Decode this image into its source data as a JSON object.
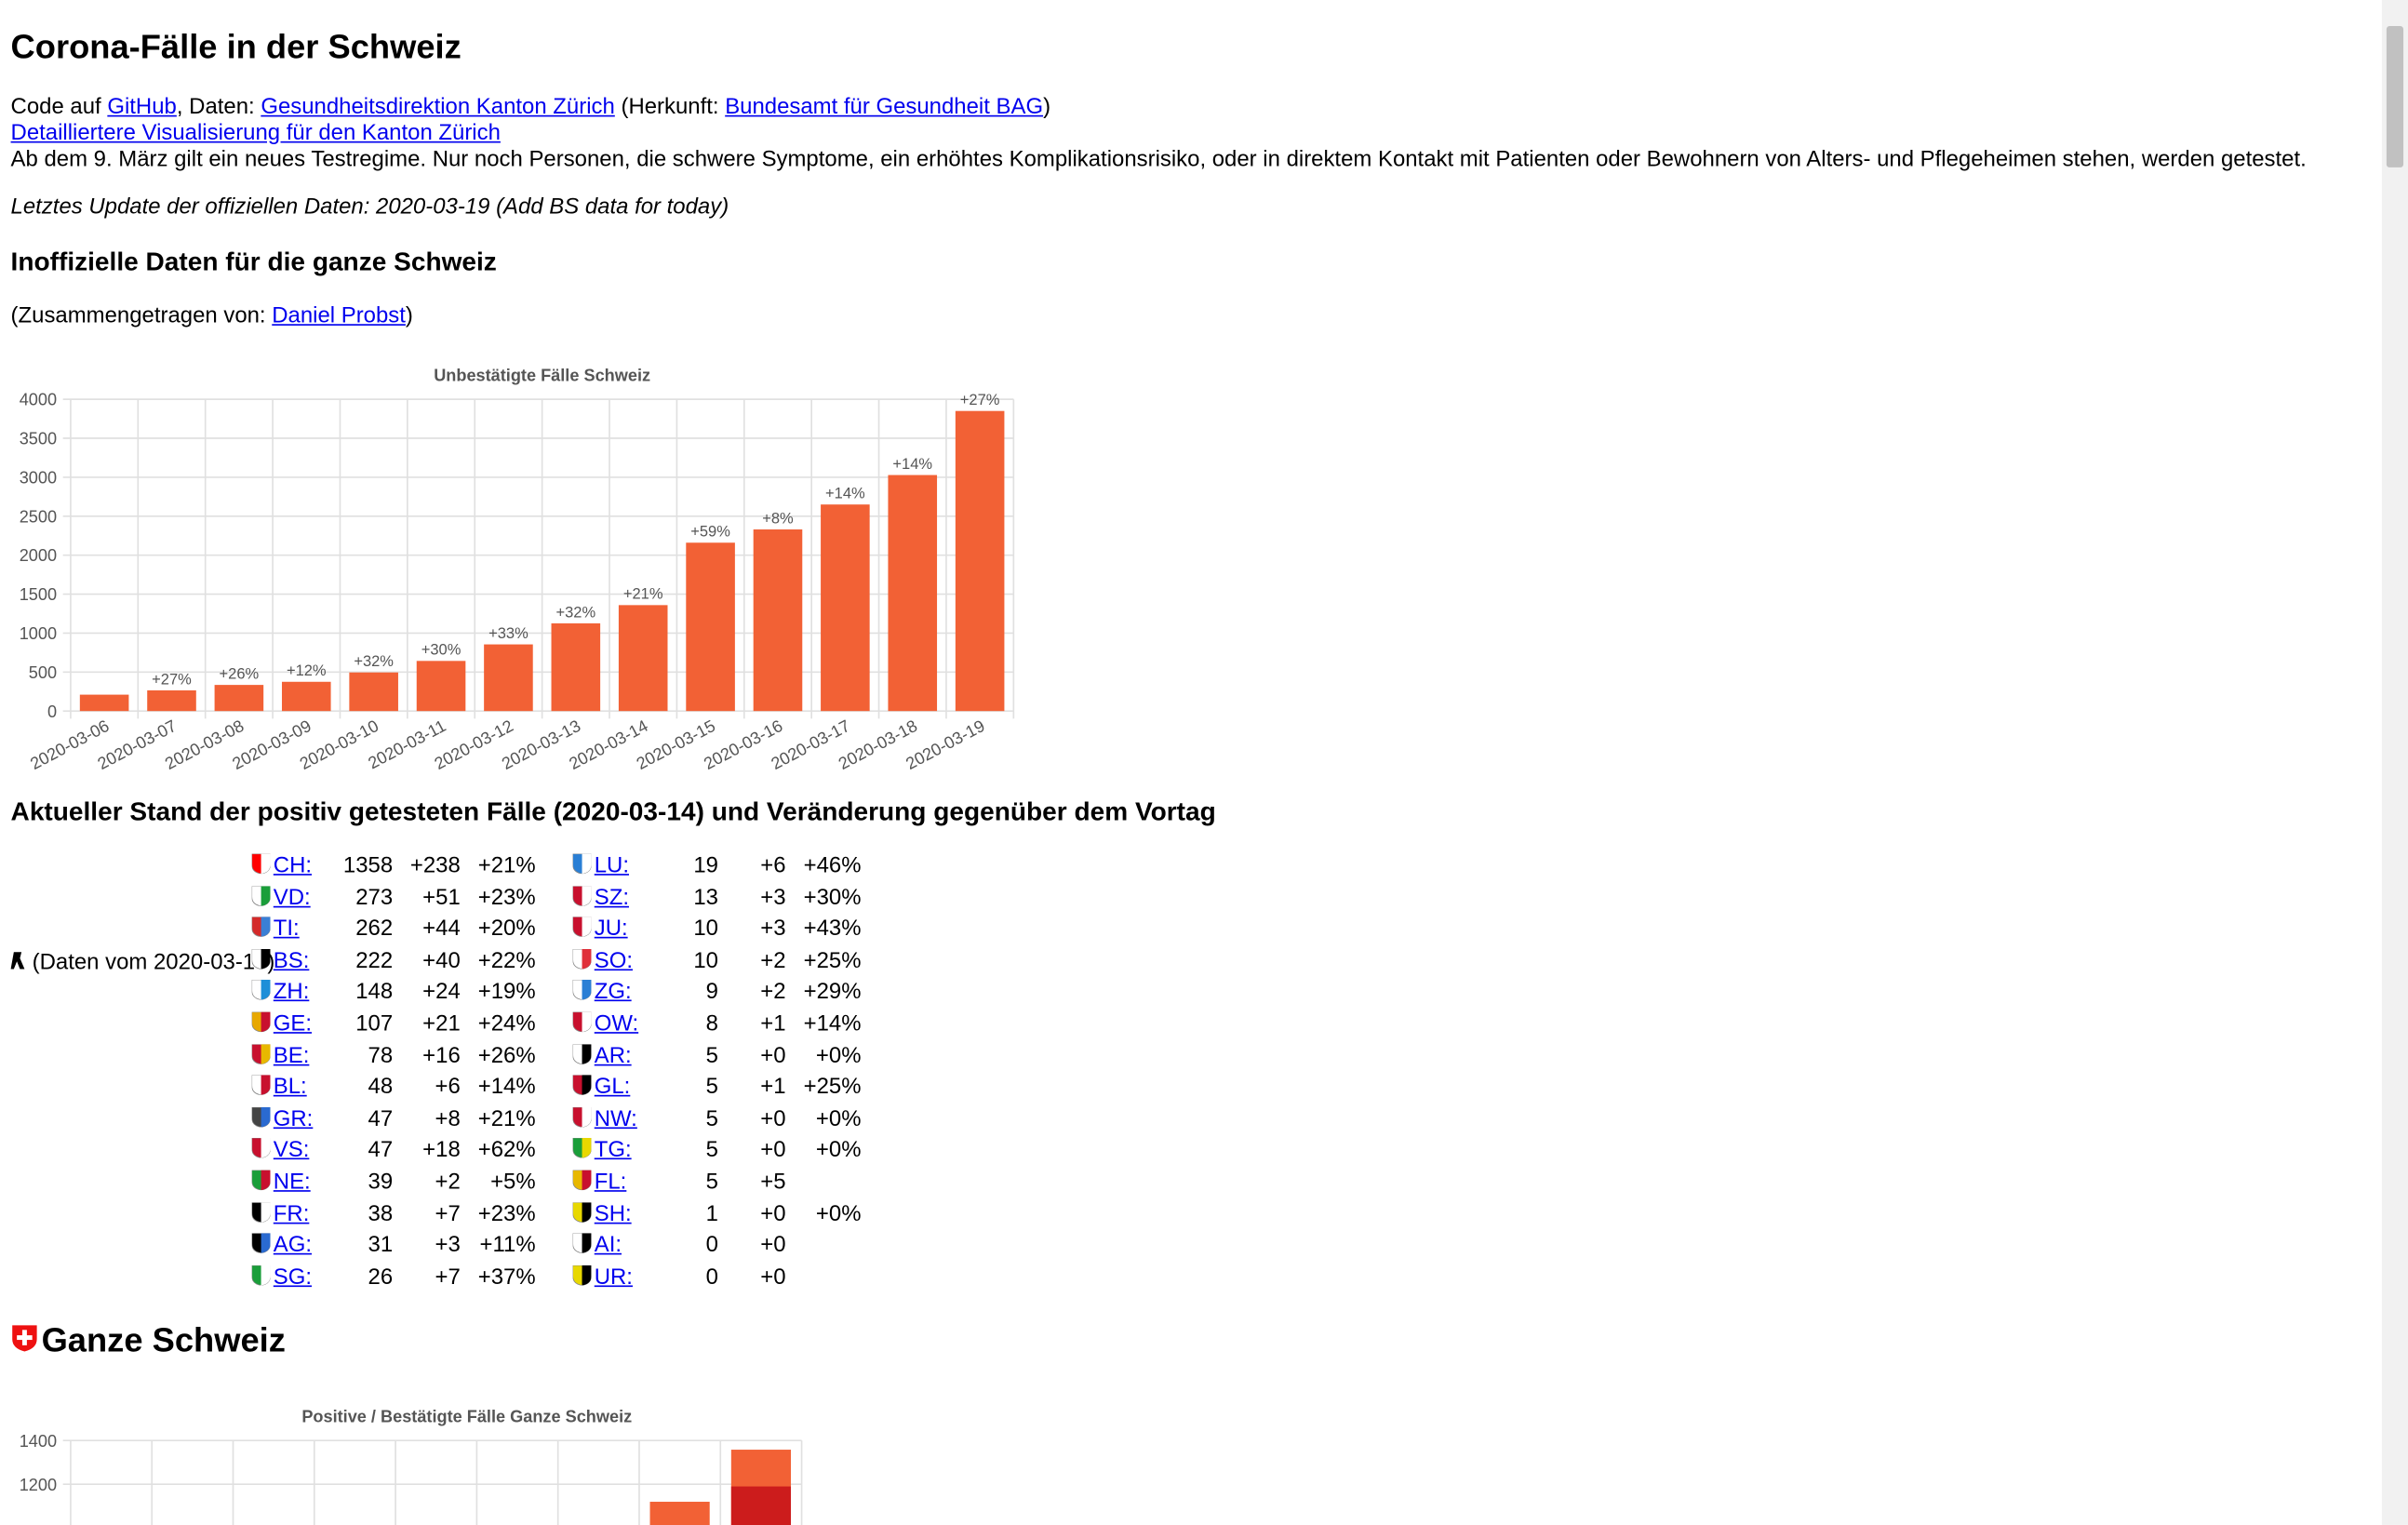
{
  "title": "Corona-Fälle in der Schweiz",
  "source": {
    "code_prefix": "Code auf ",
    "github": "GitHub",
    "daten": ", Daten: ",
    "gd": "Gesundheitsdirektion Kanton Zürich",
    "herkunft": " (Herkunft: ",
    "bag": "Bundesamt für Gesundheit BAG",
    "close": ")"
  },
  "detail_link": "Detailliertere Visualisierung für den Kanton Zürich",
  "testregime": "Ab dem 9. März gilt ein neues Testregime. Nur noch Personen, die schwere Symptome, ein erhöhtes Komplikationsrisiko, oder in direktem Kontakt mit Patienten oder Bewohnern von Alters- und Pflegeheimen stehen, werden getestet.",
  "update": "Letztes Update der offiziellen Daten: 2020-03-19 (Add BS data for today)",
  "unofficial_heading": "Inoffizielle Daten für die ganze Schweiz",
  "compiled": {
    "prefix": "(Zusammengetragen von: ",
    "name": "Daniel Probst",
    "suffix": ")"
  },
  "stand_heading": "Aktueller Stand der positiv getesteten Fälle (2020-03-14) und Veränderung gegenüber dem Vortag",
  "bs_note": "(Daten vom 2020-03-19)",
  "cantons_left": [
    {
      "code": "CH:",
      "n": "1358",
      "d": "+238",
      "p": "+21%",
      "c1": "#ff0000",
      "c2": "#ffffff"
    },
    {
      "code": "VD:",
      "n": "273",
      "d": "+51",
      "p": "+23%",
      "c1": "#ffffff",
      "c2": "#1a9e3a"
    },
    {
      "code": "TI:",
      "n": "262",
      "d": "+44",
      "p": "+20%",
      "c1": "#d42a2a",
      "c2": "#3a7fd5"
    },
    {
      "code": "BS:",
      "n": "222",
      "d": "+40",
      "p": "+22%",
      "c1": "#ffffff",
      "c2": "#000000"
    },
    {
      "code": "ZH:",
      "n": "148",
      "d": "+24",
      "p": "+19%",
      "c1": "#ffffff",
      "c2": "#1e8fd8"
    },
    {
      "code": "GE:",
      "n": "107",
      "d": "+21",
      "p": "+24%",
      "c1": "#e8a800",
      "c2": "#c8102e"
    },
    {
      "code": "BE:",
      "n": "78",
      "d": "+16",
      "p": "+26%",
      "c1": "#c8102e",
      "c2": "#e8b800"
    },
    {
      "code": "BL:",
      "n": "48",
      "d": "+6",
      "p": "+14%",
      "c1": "#ffffff",
      "c2": "#c8102e"
    },
    {
      "code": "GR:",
      "n": "47",
      "d": "+8",
      "p": "+21%",
      "c1": "#444444",
      "c2": "#2a6ad0"
    },
    {
      "code": "VS:",
      "n": "47",
      "d": "+18",
      "p": "+62%",
      "c1": "#c8102e",
      "c2": "#ffffff"
    },
    {
      "code": "NE:",
      "n": "39",
      "d": "+2",
      "p": "+5%",
      "c1": "#1a9e3a",
      "c2": "#c8102e"
    },
    {
      "code": "FR:",
      "n": "38",
      "d": "+7",
      "p": "+23%",
      "c1": "#000000",
      "c2": "#ffffff"
    },
    {
      "code": "AG:",
      "n": "31",
      "d": "+3",
      "p": "+11%",
      "c1": "#000000",
      "c2": "#2a6ad0"
    },
    {
      "code": "SG:",
      "n": "26",
      "d": "+7",
      "p": "+37%",
      "c1": "#1a9e3a",
      "c2": "#ffffff"
    }
  ],
  "cantons_right": [
    {
      "code": "LU:",
      "n": "19",
      "d": "+6",
      "p": "+46%",
      "c1": "#2a7fd5",
      "c2": "#ffffff"
    },
    {
      "code": "SZ:",
      "n": "13",
      "d": "+3",
      "p": "+30%",
      "c1": "#c8102e",
      "c2": "#ffffff"
    },
    {
      "code": "JU:",
      "n": "10",
      "d": "+3",
      "p": "+43%",
      "c1": "#c8102e",
      "c2": "#ffffff"
    },
    {
      "code": "SO:",
      "n": "10",
      "d": "+2",
      "p": "+25%",
      "c1": "#ffffff",
      "c2": "#e0303a"
    },
    {
      "code": "ZG:",
      "n": "9",
      "d": "+2",
      "p": "+29%",
      "c1": "#ffffff",
      "c2": "#2a7fd5"
    },
    {
      "code": "OW:",
      "n": "8",
      "d": "+1",
      "p": "+14%",
      "c1": "#c8102e",
      "c2": "#ffffff"
    },
    {
      "code": "AR:",
      "n": "5",
      "d": "+0",
      "p": "+0%",
      "c1": "#ffffff",
      "c2": "#000000"
    },
    {
      "code": "GL:",
      "n": "5",
      "d": "+1",
      "p": "+25%",
      "c1": "#c8102e",
      "c2": "#000000"
    },
    {
      "code": "NW:",
      "n": "5",
      "d": "+0",
      "p": "+0%",
      "c1": "#c8102e",
      "c2": "#ffffff"
    },
    {
      "code": "TG:",
      "n": "5",
      "d": "+0",
      "p": "+0%",
      "c1": "#1a9e3a",
      "c2": "#e8d800"
    },
    {
      "code": "FL:",
      "n": "5",
      "d": "+5",
      "p": "",
      "c1": "#e8b800",
      "c2": "#c8102e"
    },
    {
      "code": "SH:",
      "n": "1",
      "d": "+0",
      "p": "+0%",
      "c1": "#e8d800",
      "c2": "#000000"
    },
    {
      "code": "AI:",
      "n": "0",
      "d": "+0",
      "p": "",
      "c1": "#ffffff",
      "c2": "#000000"
    },
    {
      "code": "UR:",
      "n": "0",
      "d": "+0",
      "p": "",
      "c1": "#e8d800",
      "c2": "#000000"
    }
  ],
  "ganze_schweiz_heading": "Ganze Schweiz",
  "colors": {
    "bar": "#f26135",
    "bar_dark": "#cc1c1c",
    "grid": "#e0e0e0",
    "link": "#0000ee"
  },
  "chart_data": [
    {
      "type": "bar",
      "title": "Unbestätigte Fälle Schweiz",
      "categories": [
        "2020-03-06",
        "2020-03-07",
        "2020-03-08",
        "2020-03-09",
        "2020-03-10",
        "2020-03-11",
        "2020-03-12",
        "2020-03-13",
        "2020-03-14",
        "2020-03-15",
        "2020-03-16",
        "2020-03-17",
        "2020-03-18",
        "2020-03-19"
      ],
      "values": [
        210,
        265,
        335,
        375,
        495,
        643,
        855,
        1125,
        1359,
        2160,
        2330,
        2650,
        3028,
        3850
      ],
      "data_labels": [
        "",
        "+27%",
        "+26%",
        "+12%",
        "+32%",
        "+30%",
        "+33%",
        "+32%",
        "+21%",
        "+59%",
        "+8%",
        "+14%",
        "+14%",
        "+27%"
      ],
      "yticks": [
        "0",
        "500",
        "1000",
        "1500",
        "2000",
        "2500",
        "3000",
        "3500",
        "4000"
      ],
      "ylim": [
        0,
        4000
      ],
      "grid": true
    },
    {
      "type": "bar",
      "title": "Positive / Bestätigte Fälle Ganze Schweiz",
      "categories_count": 9,
      "values": [
        null,
        null,
        null,
        null,
        null,
        null,
        null,
        1120,
        1358
      ],
      "values_dark": [
        null,
        null,
        null,
        null,
        null,
        null,
        null,
        null,
        1190
      ],
      "yticks": [
        "1400",
        "1200"
      ],
      "ylim": [
        0,
        1400
      ],
      "grid": true,
      "note": "chart cut off at bottom of viewport"
    }
  ]
}
